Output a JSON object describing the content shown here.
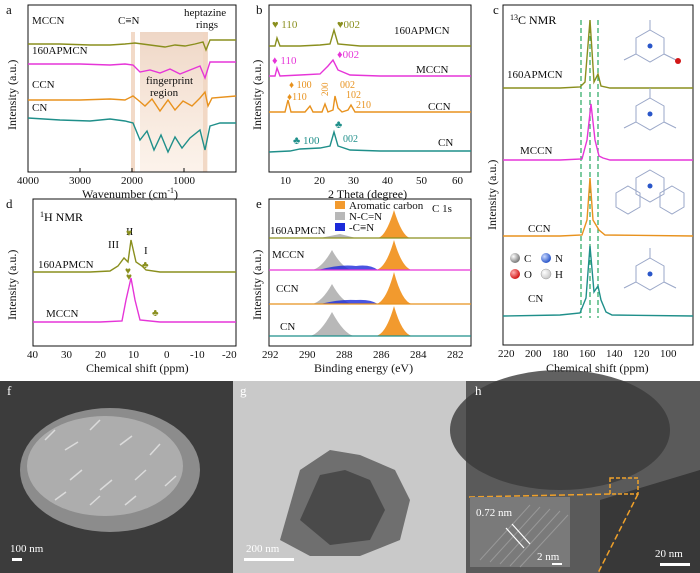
{
  "colors": {
    "CN": "#1f8f8a",
    "CCN": "#e8921e",
    "MCCN": "#e635d8",
    "APMCN": "#8a8f1e",
    "aromatic": "#f29a2e",
    "nc": "#b8b8b8",
    "cn_triple": "#1c2bd9",
    "dash": "#27a860"
  },
  "panels": {
    "a": {
      "letter": "a",
      "ylabel": "Intensity (a.u.)",
      "xlabel": "Wavenumber (cm",
      "xlabel_sup": "-1",
      "xlabel_end": ")",
      "ticks": [
        "4000",
        "3000",
        "2000",
        "1000"
      ],
      "series_labels": [
        "MCCN",
        "160APMCN",
        "CCN",
        "CN"
      ],
      "ann_cn": "C≡N",
      "ann_heptazine_1": "heptazine",
      "ann_heptazine_2": "rings",
      "ann_fingerprint_1": "fingerprint",
      "ann_fingerprint_2": "region"
    },
    "b": {
      "letter": "b",
      "ylabel": "Intensity (a.u.)",
      "xlabel": "2 Theta (degree)",
      "ticks": [
        "10",
        "20",
        "30",
        "40",
        "50",
        "60"
      ],
      "series_labels": [
        "160APMCN",
        "MCCN",
        "CCN",
        "CN"
      ],
      "apmcn_110": "110",
      "apmcn_002": "002",
      "mccn_110": "110",
      "mccn_002": "002",
      "ccn_100": "100",
      "ccn_110": "110",
      "ccn_200": "200",
      "ccn_002": "002",
      "ccn_102": "102",
      "ccn_210": "210",
      "cn_100": "100",
      "cn_002": "002"
    },
    "c": {
      "letter": "c",
      "title": "13C NMR",
      "title_sup": "13",
      "title_main": "C NMR",
      "ylabel": "Intensity (a.u.)",
      "xlabel": "Chemical shift (ppm)",
      "ticks": [
        "220",
        "200",
        "180",
        "160",
        "140",
        "120",
        "100"
      ],
      "series_labels": [
        "160APMCN",
        "MCCN",
        "CCN",
        "CN"
      ],
      "legend": [
        "C",
        "N",
        "O",
        "H"
      ]
    },
    "d": {
      "letter": "d",
      "title_sup": "1",
      "title_main": "H NMR",
      "ylabel": "Intensity (a.u.)",
      "xlabel": "Chemical shift (ppm)",
      "ticks": [
        "40",
        "30",
        "20",
        "10",
        "0",
        "-10",
        "-20"
      ],
      "series_labels": [
        "160APMCN",
        "MCCN"
      ],
      "peak_III": "III",
      "peak_II": "II",
      "peak_I": "I"
    },
    "e": {
      "letter": "e",
      "ylabel": "Intensity (a.u.)",
      "xlabel": "Binding energy (eV)",
      "ticks": [
        "292",
        "290",
        "288",
        "286",
        "284",
        "282"
      ],
      "series_labels": [
        "160APMCN",
        "MCCN",
        "CCN",
        "CN"
      ],
      "corner": "C 1s",
      "legend": [
        "Aromatic carbon",
        "N-C=N",
        "-C≡N"
      ]
    },
    "f": {
      "letter": "f",
      "scale": "100 nm"
    },
    "g": {
      "letter": "g",
      "scale": "200 nm"
    },
    "h": {
      "letter": "h",
      "scale": "20 nm",
      "inset_scale": "2 nm",
      "lattice": "0.72 nm"
    }
  }
}
